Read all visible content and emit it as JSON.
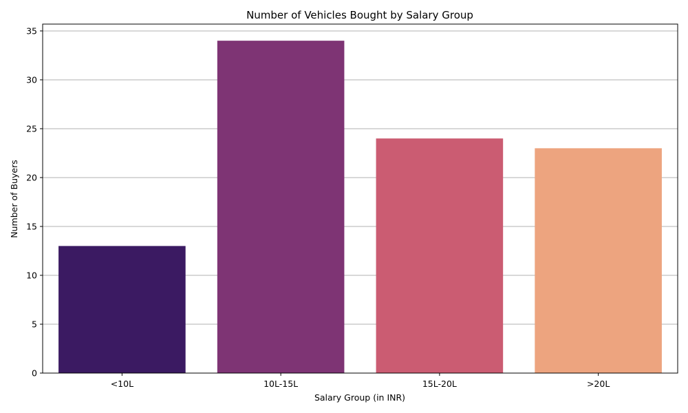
{
  "chart_data": {
    "type": "bar",
    "title": "Number of Vehicles Bought by Salary Group",
    "xlabel": "Salary Group (in INR)",
    "ylabel": "Number of Buyers",
    "categories": [
      "<10L",
      "10L-15L",
      "15L-20L",
      ">20L"
    ],
    "values": [
      13,
      34,
      24,
      23
    ],
    "colors": [
      "#3b1a62",
      "#7e3474",
      "#cb5c72",
      "#eda47f"
    ],
    "ylim": [
      0,
      35.7
    ],
    "yticks": [
      0,
      5,
      10,
      15,
      20,
      25,
      30,
      35
    ],
    "grid": "y",
    "grid_color": "#b0b0b0"
  }
}
